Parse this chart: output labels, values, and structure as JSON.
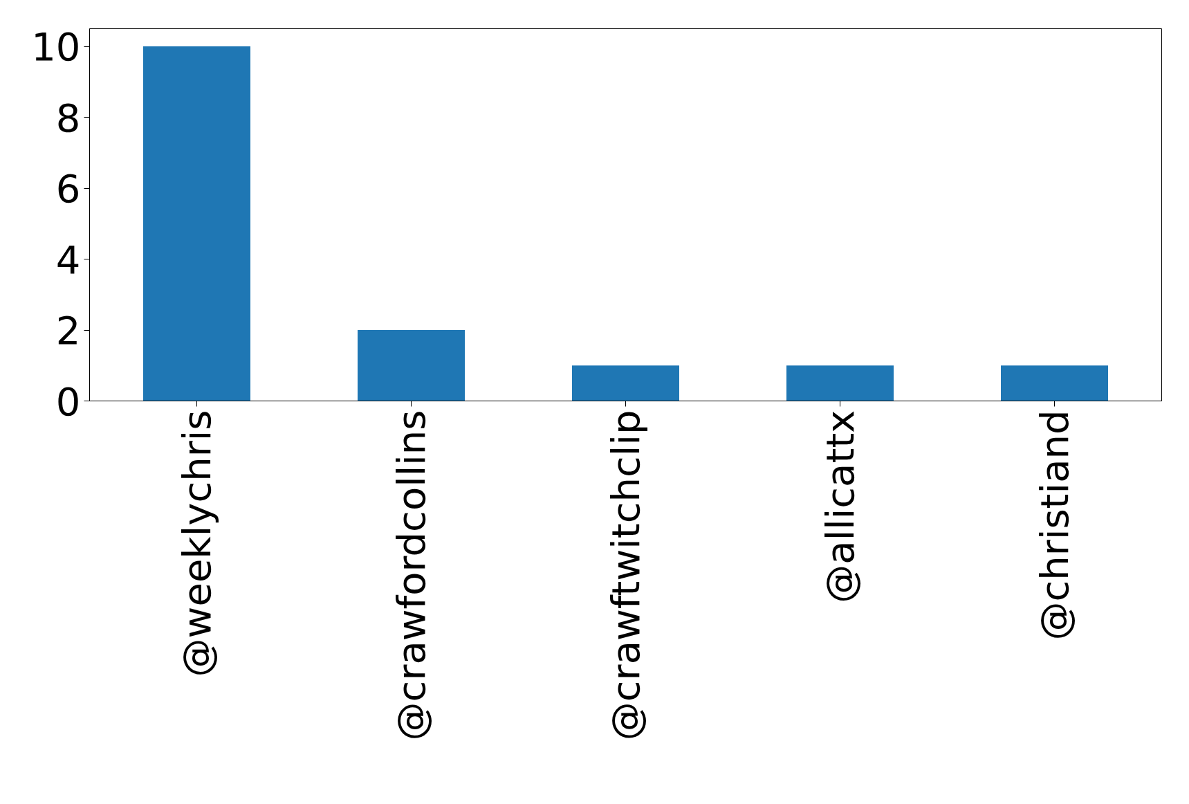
{
  "chart_data": {
    "type": "bar",
    "categories": [
      "@weeklychris",
      "@crawfordcollins",
      "@crawftwitchclip",
      "@allicattx",
      "@christiand"
    ],
    "values": [
      10,
      2,
      1,
      1,
      1
    ],
    "color": "#1f77b4",
    "ylim": [
      0,
      10.5
    ],
    "yticks": [
      0,
      2,
      4,
      6,
      8,
      10
    ],
    "grid": false
  }
}
